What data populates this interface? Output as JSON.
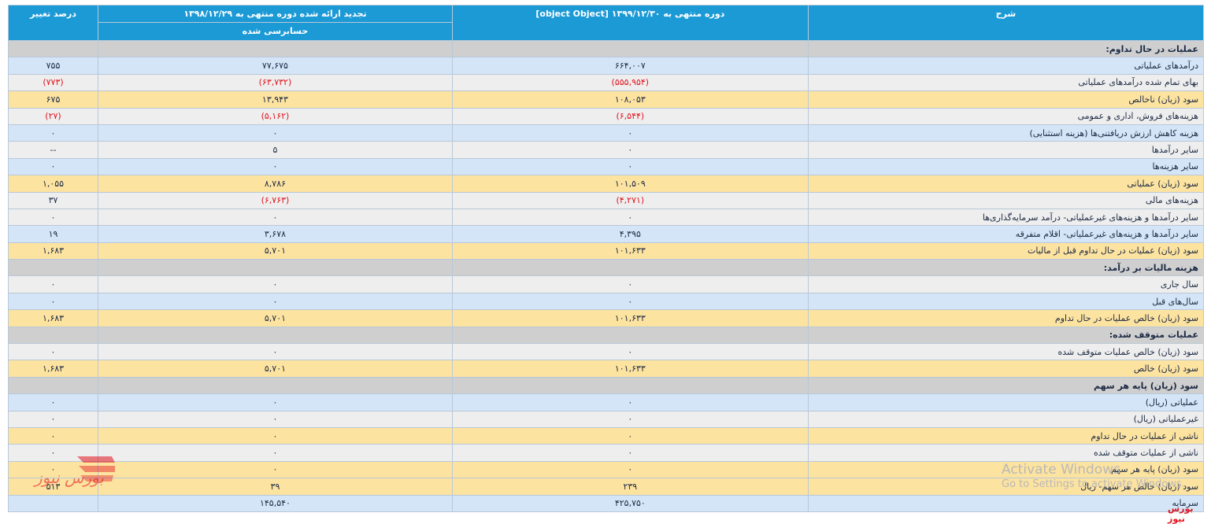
{
  "headers": {
    "sharh": "شرح",
    "current_period": "دوره منتهی به ۱۳۹۹/۱۲/۳۰ [object Object]",
    "restated_period": "تجدید ارائه شده دوره منتهی به ۱۳۹۸/۱۲/۲۹",
    "audit_status": "حسابرسی شده",
    "pct_change": "درصد تغییر"
  },
  "rows": [
    {
      "style": "sec",
      "label": "عملیات در حال تداوم:",
      "current": "",
      "restated": "",
      "pct": ""
    },
    {
      "style": "blue",
      "label": "درآمدهای عملیاتی",
      "current": "۶۶۴,۰۰۷",
      "restated": "۷۷,۶۷۵",
      "pct": "۷۵۵"
    },
    {
      "style": "gray",
      "label": "بهای تمام شده درآمدهای عملیاتی",
      "current": "(۵۵۵,۹۵۴)",
      "restated": "(۶۳,۷۳۲)",
      "pct": "(۷۷۳)"
    },
    {
      "style": "gold",
      "label": "سود (زیان) ناخالص",
      "current": "۱۰۸,۰۵۳",
      "restated": "۱۳,۹۴۳",
      "pct": "۶۷۵"
    },
    {
      "style": "gray",
      "label": "هزینه‌های فروش، اداری و عمومی",
      "current": "(۶,۵۴۴)",
      "restated": "(۵,۱۶۲)",
      "pct": "(۲۷)"
    },
    {
      "style": "blue",
      "label": "هزینه کاهش ارزش دریافتنی‌ها (هزینه استثنایی)",
      "current": "۰",
      "restated": "۰",
      "pct": "۰"
    },
    {
      "style": "gray",
      "label": "سایر درآمدها",
      "current": "۰",
      "restated": "۵",
      "pct": "--"
    },
    {
      "style": "blue",
      "label": "سایر هزینه‌ها",
      "current": "۰",
      "restated": "۰",
      "pct": "۰"
    },
    {
      "style": "gold",
      "label": "سود (زیان) عملیاتی",
      "current": "۱۰۱,۵۰۹",
      "restated": "۸,۷۸۶",
      "pct": "۱,۰۵۵"
    },
    {
      "style": "gray",
      "label": "هزینه‌های مالی",
      "current": "(۴,۲۷۱)",
      "restated": "(۶,۷۶۳)",
      "pct": "۳۷"
    },
    {
      "style": "gray",
      "label": "سایر درآمدها و هزینه‌های غیرعملیاتی- درآمد سرمایه‌گذاری‌ها",
      "current": "۰",
      "restated": "۰",
      "pct": "۰"
    },
    {
      "style": "blue",
      "label": "سایر درآمدها و هزینه‌های غیرعملیاتی- اقلام متفرقه",
      "current": "۴,۳۹۵",
      "restated": "۳,۶۷۸",
      "pct": "۱۹"
    },
    {
      "style": "gold",
      "label": "سود (زیان) عملیات در حال تداوم قبل از مالیات",
      "current": "۱۰۱,۶۳۳",
      "restated": "۵,۷۰۱",
      "pct": "۱,۶۸۳"
    },
    {
      "style": "sec",
      "label": "هزینه مالیات بر درآمد:",
      "current": "",
      "restated": "",
      "pct": ""
    },
    {
      "style": "gray",
      "label": "سال جاری",
      "current": "۰",
      "restated": "۰",
      "pct": "۰"
    },
    {
      "style": "blue",
      "label": "سال‌های قبل",
      "current": "۰",
      "restated": "۰",
      "pct": "۰"
    },
    {
      "style": "gold",
      "label": "سود (زیان) خالص عملیات در حال تداوم",
      "current": "۱۰۱,۶۳۳",
      "restated": "۵,۷۰۱",
      "pct": "۱,۶۸۳"
    },
    {
      "style": "sec",
      "label": "عملیات متوقف شده:",
      "current": "",
      "restated": "",
      "pct": ""
    },
    {
      "style": "gray",
      "label": "سود (زیان) خالص عملیات متوقف شده",
      "current": "۰",
      "restated": "۰",
      "pct": "۰"
    },
    {
      "style": "gold",
      "label": "سود (زیان) خالص",
      "current": "۱۰۱,۶۳۳",
      "restated": "۵,۷۰۱",
      "pct": "۱,۶۸۳"
    },
    {
      "style": "sec",
      "label": "سود (زیان) پایه هر سهم",
      "current": "",
      "restated": "",
      "pct": ""
    },
    {
      "style": "blue",
      "label": "عملیاتی (ریال)",
      "current": "۰",
      "restated": "۰",
      "pct": "۰"
    },
    {
      "style": "gray",
      "label": "غیرعملیاتی (ریال)",
      "current": "۰",
      "restated": "۰",
      "pct": "۰"
    },
    {
      "style": "gold",
      "label": "ناشی از عملیات در حال تداوم",
      "current": "۰",
      "restated": "۰",
      "pct": "۰"
    },
    {
      "style": "gray",
      "label": "ناشی از عملیات متوقف شده",
      "current": "۰",
      "restated": "۰",
      "pct": "۰"
    },
    {
      "style": "gold",
      "label": "سود (زیان) پایه هر سهم",
      "current": "۰",
      "restated": "۰",
      "pct": "۰"
    },
    {
      "style": "gold",
      "label": "سود (زیان) خالص هر سهم- ریال",
      "current": "۲۳۹",
      "restated": "۳۹",
      "pct": "۵۱۳"
    },
    {
      "style": "blue",
      "label": "سرمایه",
      "current": "۴۲۵,۷۵۰",
      "restated": "۱۴۵,۵۴۰",
      "pct": ""
    }
  ],
  "watermark": {
    "activate_title": "Activate Windows",
    "activate_sub": "Go to Settings to activate Windows.",
    "brand_text": "بورس نیوز",
    "logo_text": "بورس نیوز"
  },
  "colors": {
    "header": "#1c9ad6",
    "row_blue": "#d3e5f6",
    "row_gray": "#eeeeee",
    "row_gold": "#fde3a0",
    "row_section": "#cfcfcf",
    "negative": "#e0141e",
    "logo": "#e0141e"
  }
}
